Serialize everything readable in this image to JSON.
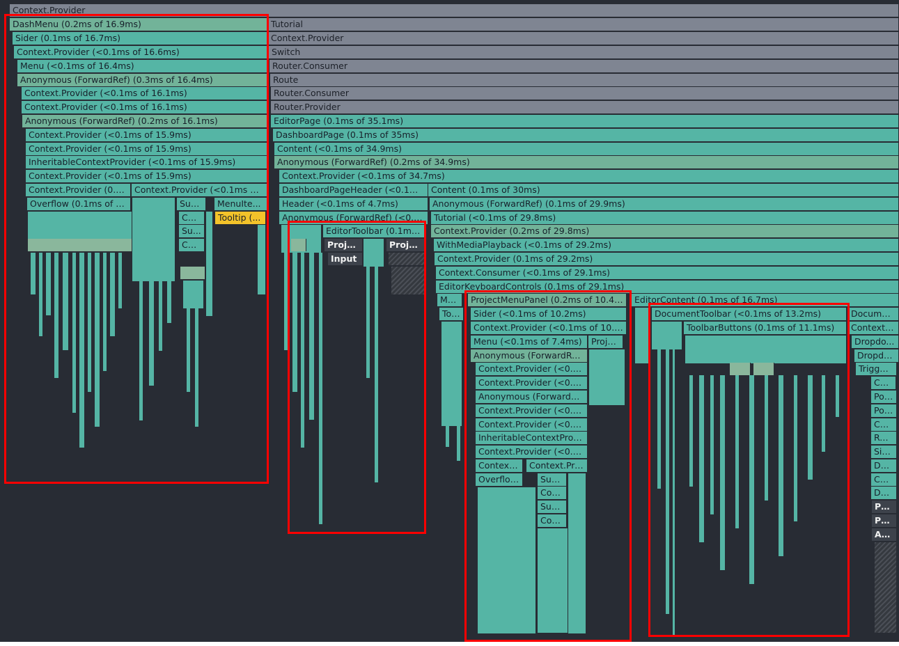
{
  "flamegraph": {
    "rows": [
      [
        {
          "label": "Context.Provider",
          "color": "gray"
        }
      ],
      [
        {
          "label": "DashMenu (0.2ms of 16.9ms)",
          "color": "sage"
        },
        {
          "label": "Tutorial",
          "color": "gray"
        }
      ],
      [
        {
          "label": "Sider (0.1ms of 16.7ms)",
          "color": "teal"
        },
        {
          "label": "Context.Provider",
          "color": "gray"
        }
      ],
      [
        {
          "label": "Context.Provider (<0.1ms of 16.6ms)",
          "color": "teal"
        },
        {
          "label": "Switch",
          "color": "gray"
        }
      ],
      [
        {
          "label": "Menu (<0.1ms of 16.4ms)",
          "color": "teal"
        },
        {
          "label": "Router.Consumer",
          "color": "gray"
        }
      ],
      [
        {
          "label": "Anonymous (ForwardRef) (0.3ms of 16.4ms)",
          "color": "sage"
        },
        {
          "label": "Route",
          "color": "gray"
        }
      ],
      [
        {
          "label": "Context.Provider (<0.1ms of 16.1ms)",
          "color": "teal"
        },
        {
          "label": "Router.Consumer",
          "color": "gray"
        }
      ],
      [
        {
          "label": "Context.Provider (<0.1ms of 16.1ms)",
          "color": "teal"
        },
        {
          "label": "Router.Provider",
          "color": "gray"
        }
      ],
      [
        {
          "label": "Anonymous (ForwardRef) (0.2ms of 16.1ms)",
          "color": "sage"
        },
        {
          "label": "EditorPage (0.1ms of 35.1ms)",
          "color": "teal"
        }
      ],
      [
        {
          "label": "Context.Provider (<0.1ms of 15.9ms)",
          "color": "teal"
        },
        {
          "label": "DashboardPage (0.1ms of 35ms)",
          "color": "teal"
        }
      ],
      [
        {
          "label": "Context.Provider (<0.1ms of 15.9ms)",
          "color": "teal"
        },
        {
          "label": "Content (<0.1ms of 34.9ms)",
          "color": "teal"
        }
      ],
      [
        {
          "label": "InheritableContextProvider (<0.1ms of 15.9ms)",
          "color": "teal"
        },
        {
          "label": "Anonymous (ForwardRef) (0.2ms of 34.9ms)",
          "color": "sage"
        }
      ],
      [
        {
          "label": "Context.Provider (<0.1ms of 15.9ms)",
          "color": "teal"
        },
        {
          "label": "Context.Provider (<0.1ms of 34.7ms)",
          "color": "teal"
        }
      ],
      [
        {
          "label": "Context.Provider (0.1m...",
          "color": "teal"
        },
        {
          "label": "Context.Provider (<0.1ms of 8...",
          "color": "teal"
        },
        {
          "label": "DashboardPageHeader (<0.1ms ...",
          "color": "teal"
        },
        {
          "label": "Content (0.1ms of 30ms)",
          "color": "teal"
        }
      ],
      [
        {
          "label": "Overflow (0.1ms of 7.2...",
          "color": "teal"
        },
        {
          "label": "Sub...",
          "color": "teal"
        },
        {
          "label": "MenuIte...",
          "color": "teal"
        },
        {
          "label": "Header (<0.1ms of 4.7ms)",
          "color": "teal"
        },
        {
          "label": "Anonymous (ForwardRef) (0.1ms of 29.9ms)",
          "color": "teal"
        }
      ],
      [
        {
          "label": "Co...",
          "color": "teal"
        },
        {
          "label": "Tooltip (...",
          "color": "gold"
        },
        {
          "label": "Anonymous (ForwardRef) (<0.1m...",
          "color": "teal"
        },
        {
          "label": "Tutorial (<0.1ms of 29.8ms)",
          "color": "teal"
        }
      ],
      [
        {
          "label": "Su...",
          "color": "teal"
        },
        {
          "label": "EditorToolbar (0.1ms o...",
          "color": "teal"
        },
        {
          "label": "Context.Provider (0.2ms of 29.8ms)",
          "color": "sage"
        }
      ],
      [
        {
          "label": "Co...",
          "color": "teal"
        },
        {
          "label": "Projec...",
          "color": "dark"
        },
        {
          "label": "Project...",
          "color": "dark"
        },
        {
          "label": "WithMediaPlayback (<0.1ms of 29.2ms)",
          "color": "teal"
        }
      ],
      [
        {
          "label": "Input",
          "color": "dark"
        },
        {
          "label": "Context.Provider (0.1ms of 29.2ms)",
          "color": "teal"
        }
      ],
      [
        {
          "label": "Context.Consumer (<0.1ms of 29.1ms)",
          "color": "teal"
        }
      ],
      [
        {
          "label": "EditorKeyboardControls (0.1ms of 29.1ms)",
          "color": "teal"
        }
      ],
      [
        {
          "label": "Me...",
          "color": "teal"
        },
        {
          "label": "ProjectMenuPanel (0.2ms of 10.4ms)",
          "color": "sage"
        },
        {
          "label": "EditorContent (0.1ms of 16.7ms)",
          "color": "teal"
        }
      ],
      [
        {
          "label": "Too...",
          "color": "teal"
        },
        {
          "label": "Sider (<0.1ms of 10.2ms)",
          "color": "teal"
        },
        {
          "label": "DocumentToolbar (<0.1ms of 13.2ms)",
          "color": "teal"
        },
        {
          "label": "DocumentE...",
          "color": "teal"
        }
      ],
      [
        {
          "label": "Context.Provider (<0.1ms of 10.2ms)",
          "color": "teal"
        },
        {
          "label": "ToolbarButtons (0.1ms of 11.1ms)",
          "color": "teal"
        },
        {
          "label": "ContextMe...",
          "color": "teal"
        }
      ],
      [
        {
          "label": "Menu (<0.1ms of 7.4ms)",
          "color": "teal"
        },
        {
          "label": "Proje...",
          "color": "teal"
        },
        {
          "label": "Dropdo...",
          "color": "teal"
        }
      ],
      [
        {
          "label": "Anonymous (ForwardRef)...",
          "color": "sage"
        },
        {
          "label": "Dropdo...",
          "color": "teal"
        }
      ],
      [
        {
          "label": "Context.Provider (<0.1m...",
          "color": "teal"
        },
        {
          "label": "Trigger...",
          "color": "teal"
        }
      ],
      [
        {
          "label": "Context.Provider (<0.1m...",
          "color": "teal"
        },
        {
          "label": "Co...",
          "color": "teal"
        }
      ],
      [
        {
          "label": "Anonymous (ForwardRe...",
          "color": "teal"
        },
        {
          "label": "Pop...",
          "color": "teal"
        }
      ],
      [
        {
          "label": "Context.Provider (<0.1m...",
          "color": "teal"
        },
        {
          "label": "Por...",
          "color": "teal"
        }
      ],
      [
        {
          "label": "Context.Provider (<0.1m...",
          "color": "teal"
        },
        {
          "label": "Co...",
          "color": "teal"
        }
      ],
      [
        {
          "label": "InheritableContextProvi...",
          "color": "teal"
        },
        {
          "label": "Res...",
          "color": "teal"
        }
      ],
      [
        {
          "label": "Context.Provider (<0.1m...",
          "color": "teal"
        },
        {
          "label": "Sin...",
          "color": "teal"
        }
      ],
      [
        {
          "label": "Context....",
          "color": "teal"
        },
        {
          "label": "Context.Pro...",
          "color": "teal"
        },
        {
          "label": "Do...",
          "color": "teal"
        }
      ],
      [
        {
          "label": "Overflow...",
          "color": "teal"
        },
        {
          "label": "Sub...",
          "color": "teal"
        },
        {
          "label": "CS...",
          "color": "teal"
        }
      ],
      [
        {
          "label": "Con...",
          "color": "teal"
        },
        {
          "label": "Do...",
          "color": "teal"
        }
      ],
      [
        {
          "label": "Sub...",
          "color": "teal"
        },
        {
          "label": "Po...",
          "color": "dark"
        }
      ],
      [
        {
          "label": "Con...",
          "color": "teal"
        },
        {
          "label": "Po...",
          "color": "dark"
        }
      ],
      [
        {
          "label": "An...",
          "color": "dark"
        }
      ]
    ]
  },
  "colors": {
    "background": "#282c34",
    "gray": "#7f8592",
    "teal": "#55b5a5",
    "sage": "#72b399",
    "gold": "#f3c32a",
    "dark": "#3d424b",
    "highlight": "#ff0000"
  }
}
